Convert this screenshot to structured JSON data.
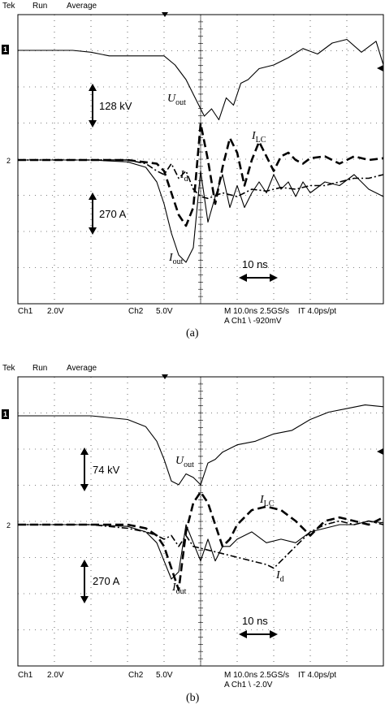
{
  "chart_data": [
    {
      "type": "line",
      "panel_caption": "(a)",
      "header": {
        "brand": "Tek",
        "mode": "Run",
        "acq": "Average"
      },
      "markers": {
        "ch1": "1",
        "ch2": "2"
      },
      "footer": {
        "ch1_label": "Ch1",
        "ch1_scale": "2.0V",
        "ch2_label": "Ch2",
        "ch2_scale": "5.0V",
        "timebase": "M 10.0ns 2.5GS/s",
        "interp": "IT 4.0ps/pt",
        "trigger": "A Ch1 \\ -920mV"
      },
      "annotations": {
        "voltage_scale": "128 kV",
        "current_scale": "270 A",
        "time_scale": "10 ns",
        "u_out": {
          "main": "U",
          "sub": "out"
        },
        "i_lc": {
          "main": "I",
          "sub": "LC"
        },
        "i_d": {
          "main": "I",
          "sub": "d"
        },
        "i_out": {
          "main": "I",
          "sub": "out"
        }
      },
      "xlim": [
        0,
        10
      ],
      "ylim": [
        -4,
        4
      ],
      "series": [
        {
          "name": "Uout",
          "style": "solid",
          "x": [
            0,
            0.5,
            1,
            1.5,
            2,
            2.5,
            3,
            3.5,
            4,
            4.3,
            4.6,
            4.9,
            5.1,
            5.3,
            5.5,
            5.7,
            5.9,
            6.1,
            6.3,
            6.6,
            7,
            7.4,
            7.8,
            8.2,
            8.6,
            9,
            9.4,
            9.8,
            10
          ],
          "y": [
            3,
            3,
            3,
            3,
            2.95,
            2.85,
            2.85,
            2.85,
            2.85,
            2.6,
            2.2,
            1.6,
            1.2,
            1.4,
            1.1,
            1.7,
            1.5,
            2.1,
            2.2,
            2.5,
            2.6,
            2.8,
            3.05,
            2.9,
            3.2,
            3.3,
            2.95,
            3.25,
            2.6
          ]
        },
        {
          "name": "ILC",
          "style": "dashed",
          "x": [
            0,
            1,
            2,
            3,
            3.8,
            4,
            4.2,
            4.4,
            4.6,
            4.8,
            5.0,
            5.2,
            5.4,
            5.6,
            5.8,
            6.0,
            6.2,
            6.4,
            6.6,
            6.8,
            7.0,
            7.2,
            7.4,
            7.6,
            7.8,
            8.0,
            8.4,
            8.8,
            9.2,
            9.6,
            10
          ],
          "y": [
            0,
            0,
            0,
            0,
            -0.1,
            -0.3,
            -0.9,
            -1.5,
            -1.8,
            -1.3,
            1.0,
            0.0,
            -1.2,
            -0.2,
            0.6,
            0.2,
            -0.7,
            0.0,
            0.5,
            0.1,
            -0.3,
            0.1,
            0.2,
            0.0,
            -0.1,
            0.05,
            0.1,
            -0.1,
            0.1,
            0.0,
            0.05
          ]
        },
        {
          "name": "Id",
          "style": "dashdot",
          "x": [
            0,
            3,
            3.5,
            3.8,
            4.0,
            4.2,
            4.4,
            4.6,
            4.8,
            5.0,
            5.2,
            5.6,
            6.0,
            6.4,
            6.8,
            7.2,
            7.6,
            8.0,
            8.4,
            8.8,
            9.2,
            9.6,
            10
          ],
          "y": [
            0,
            0,
            -0.1,
            -0.3,
            -0.4,
            -0.1,
            -0.5,
            -0.3,
            -0.8,
            -1.0,
            -1.05,
            -0.9,
            -1.0,
            -0.8,
            -0.85,
            -0.75,
            -0.8,
            -0.7,
            -0.7,
            -0.6,
            -0.5,
            -0.5,
            -0.4
          ]
        },
        {
          "name": "Iout",
          "style": "solid",
          "x": [
            0,
            1,
            2,
            3,
            3.5,
            3.8,
            4.0,
            4.2,
            4.4,
            4.6,
            4.8,
            5.0,
            5.2,
            5.4,
            5.6,
            5.8,
            6.0,
            6.2,
            6.4,
            6.6,
            6.8,
            7.0,
            7.2,
            7.4,
            7.6,
            7.8,
            8.0,
            8.4,
            8.8,
            9.2,
            9.6,
            10
          ],
          "y": [
            0,
            0,
            0,
            -0.05,
            -0.2,
            -0.6,
            -1.2,
            -2.0,
            -2.6,
            -2.8,
            -2.4,
            -0.3,
            -1.7,
            -1.0,
            -0.4,
            -1.3,
            -0.7,
            -1.3,
            -0.9,
            -0.6,
            -0.9,
            -0.4,
            -0.8,
            -0.6,
            -1.0,
            -0.6,
            -0.9,
            -0.6,
            -0.7,
            -0.4,
            -0.8,
            -1.0
          ]
        }
      ]
    },
    {
      "type": "line",
      "panel_caption": "(b)",
      "header": {
        "brand": "Tek",
        "mode": "Run",
        "acq": "Average"
      },
      "markers": {
        "ch1": "1",
        "ch2": "2"
      },
      "footer": {
        "ch1_label": "Ch1",
        "ch1_scale": "2.0V",
        "ch2_label": "Ch2",
        "ch2_scale": "5.0V",
        "timebase": "M 10.0ns 2.5GS/s",
        "interp": "IT 4.0ps/pt",
        "trigger": "A Ch1 \\ -2.0V"
      },
      "annotations": {
        "voltage_scale": "74 kV",
        "current_scale": "270 A",
        "time_scale": "10 ns",
        "u_out": {
          "main": "U",
          "sub": "out"
        },
        "i_lc": {
          "main": "I",
          "sub": "LC"
        },
        "i_d": {
          "main": "I",
          "sub": "d"
        },
        "i_out": {
          "main": "I",
          "sub": "out"
        }
      },
      "xlim": [
        0,
        10
      ],
      "ylim": [
        -4,
        4
      ],
      "series": [
        {
          "name": "Uout",
          "style": "solid",
          "x": [
            0,
            1,
            2,
            3,
            3.5,
            3.8,
            4.0,
            4.2,
            4.4,
            4.6,
            4.8,
            5.0,
            5.2,
            5.4,
            5.6,
            6.0,
            6.5,
            7.0,
            7.5,
            8.0,
            8.5,
            9.0,
            9.5,
            10
          ],
          "y": [
            3,
            3,
            3,
            2.9,
            2.7,
            2.3,
            1.8,
            1.2,
            1.1,
            1.4,
            1.3,
            1.1,
            1.7,
            1.8,
            2.0,
            2.2,
            2.3,
            2.5,
            2.6,
            2.9,
            3.1,
            3.2,
            3.3,
            3.25
          ]
        },
        {
          "name": "ILC",
          "style": "dashed",
          "x": [
            0,
            2,
            3,
            3.5,
            3.8,
            4.0,
            4.2,
            4.4,
            4.6,
            4.8,
            5.0,
            5.2,
            5.4,
            5.6,
            5.8,
            6.0,
            6.4,
            6.8,
            7.2,
            7.6,
            8.0,
            8.4,
            8.8,
            9.2,
            9.6,
            10
          ],
          "y": [
            0,
            0,
            0,
            -0.1,
            -0.3,
            -0.6,
            -1.2,
            -1.8,
            -0.2,
            0.6,
            0.9,
            0.6,
            0.0,
            -0.6,
            -0.4,
            0.0,
            0.4,
            0.5,
            0.4,
            0.1,
            -0.3,
            0.1,
            0.2,
            0.1,
            0.0,
            0.2
          ]
        },
        {
          "name": "Id",
          "style": "dashdot",
          "x": [
            0,
            2,
            3,
            3.5,
            3.8,
            4.0,
            4.2,
            4.4,
            4.6,
            4.8,
            5.2,
            5.6,
            6.0,
            6.4,
            6.8,
            7.0,
            7.2,
            7.6,
            8.0,
            8.4,
            8.8,
            9.2,
            9.6,
            10
          ],
          "y": [
            0,
            0,
            -0.1,
            -0.2,
            -0.3,
            -0.4,
            -0.3,
            -0.6,
            -0.3,
            -0.6,
            -0.7,
            -0.8,
            -0.9,
            -1.0,
            -1.1,
            -1.2,
            -1.0,
            -0.6,
            -0.2,
            0.0,
            0.1,
            0.0,
            0.1,
            0.0
          ]
        },
        {
          "name": "Iout",
          "style": "solid",
          "x": [
            0,
            2,
            3,
            3.5,
            3.8,
            4.0,
            4.2,
            4.4,
            4.6,
            4.8,
            5.0,
            5.2,
            5.4,
            5.6,
            5.8,
            6.0,
            6.4,
            6.8,
            7.2,
            7.6,
            8.0,
            8.4,
            8.8,
            9.2,
            9.6,
            10
          ],
          "y": [
            0,
            0,
            -0.05,
            -0.2,
            -0.5,
            -1.0,
            -1.5,
            -1.3,
            0.0,
            -0.5,
            -1.0,
            -0.4,
            -1.0,
            -0.6,
            -0.6,
            -0.4,
            -0.2,
            -0.5,
            -0.4,
            -0.5,
            -0.2,
            -0.1,
            0.0,
            0.0,
            0.1,
            0.05
          ]
        }
      ]
    }
  ]
}
